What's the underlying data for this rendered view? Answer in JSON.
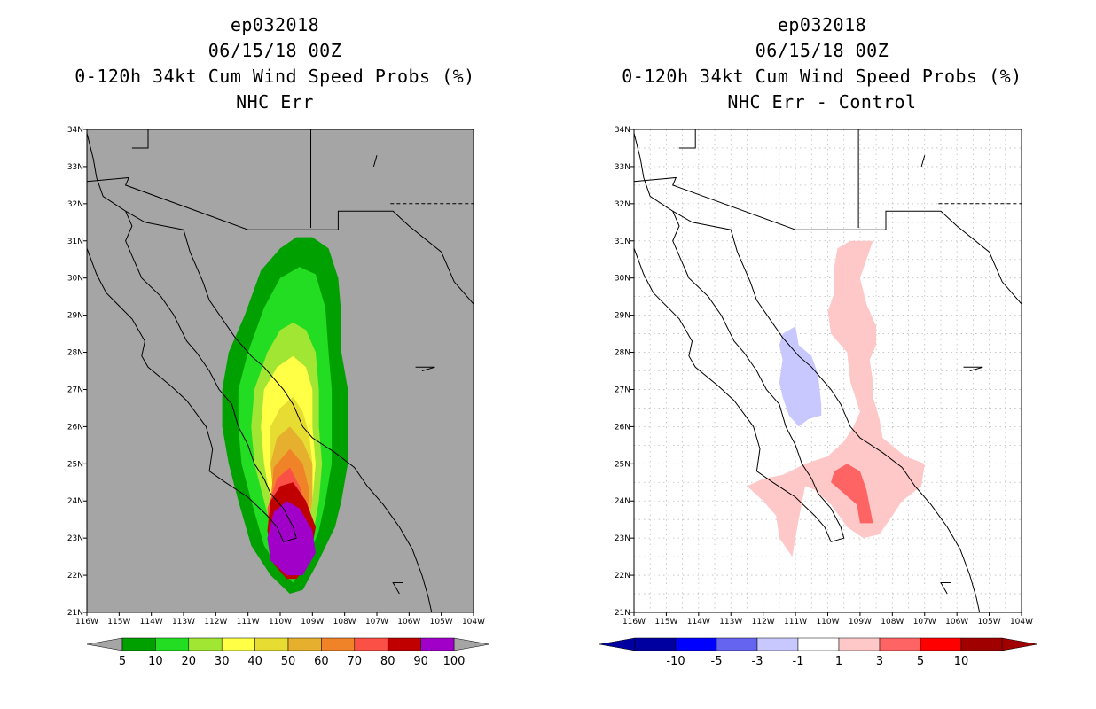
{
  "left_panel": {
    "title_line1": "ep032018",
    "title_line2": "06/15/18 00Z",
    "title_line3": "0-120h 34kt Cum Wind Speed Probs (%)",
    "title_line4": "NHC Err"
  },
  "right_panel": {
    "title_line1": "ep032018",
    "title_line2": "06/15/18 00Z",
    "title_line3": "0-120h 34kt Cum Wind Speed Probs (%)",
    "title_line4": "NHC Err - Control"
  },
  "chart_data": [
    {
      "type": "heatmap",
      "panel": "left",
      "title": "0-120h 34kt Cum Wind Speed Probs (%)",
      "subtitle": "NHC Err",
      "x_ticks": [
        "116W",
        "115W",
        "114W",
        "113W",
        "112W",
        "111W",
        "110W",
        "109W",
        "108W",
        "107W",
        "106W",
        "105W",
        "104W"
      ],
      "y_ticks": [
        "21N",
        "22N",
        "23N",
        "24N",
        "25N",
        "26N",
        "27N",
        "28N",
        "29N",
        "30N",
        "31N",
        "32N",
        "33N",
        "34N"
      ],
      "xlim": [
        -116,
        -104
      ],
      "ylim": [
        21,
        34
      ],
      "grid": false,
      "background": "#a5a5a5",
      "colorbar": {
        "labels": [
          "5",
          "10",
          "20",
          "30",
          "40",
          "50",
          "60",
          "70",
          "80",
          "90",
          "100"
        ],
        "colors": [
          "#00a000",
          "#22dd22",
          "#a0e632",
          "#ffff45",
          "#e6dc32",
          "#e6af2d",
          "#f08228",
          "#fa5046",
          "#c00000",
          "#a000c8"
        ],
        "arrow_color": "#a5a5a5"
      },
      "contours": [
        {
          "level": 5,
          "color": "#00a000",
          "points": [
            [
              -109.5,
              31.1
            ],
            [
              -109,
              31.1
            ],
            [
              -108.5,
              30.8
            ],
            [
              -108.2,
              30
            ],
            [
              -108.1,
              29
            ],
            [
              -108.1,
              28
            ],
            [
              -107.9,
              27
            ],
            [
              -107.9,
              26
            ],
            [
              -107.9,
              25
            ],
            [
              -108.1,
              24
            ],
            [
              -108.3,
              23.3
            ],
            [
              -108.8,
              22.4
            ],
            [
              -109.3,
              21.6
            ],
            [
              -109.7,
              21.5
            ],
            [
              -110.3,
              22
            ],
            [
              -110.9,
              22.8
            ],
            [
              -111.3,
              24
            ],
            [
              -111.6,
              25
            ],
            [
              -111.8,
              26
            ],
            [
              -111.8,
              27
            ],
            [
              -111.6,
              28
            ],
            [
              -111.1,
              29
            ],
            [
              -110.6,
              30.2
            ],
            [
              -110,
              30.8
            ]
          ]
        },
        {
          "level": 10,
          "color": "#22dd22",
          "points": [
            [
              -109.4,
              30.3
            ],
            [
              -108.9,
              30.1
            ],
            [
              -108.6,
              29.2
            ],
            [
              -108.5,
              28
            ],
            [
              -108.4,
              27
            ],
            [
              -108.4,
              26
            ],
            [
              -108.4,
              25
            ],
            [
              -108.6,
              24
            ],
            [
              -108.8,
              23.2
            ],
            [
              -109.2,
              22.3
            ],
            [
              -109.6,
              21.8
            ],
            [
              -110,
              22.1
            ],
            [
              -110.5,
              22.8
            ],
            [
              -110.9,
              24
            ],
            [
              -111.2,
              25
            ],
            [
              -111.3,
              26
            ],
            [
              -111.3,
              27
            ],
            [
              -111,
              28
            ],
            [
              -110.5,
              29.2
            ],
            [
              -110,
              30
            ]
          ]
        },
        {
          "level": 20,
          "color": "#a0e632",
          "points": [
            [
              -109.6,
              28.8
            ],
            [
              -109.2,
              28.6
            ],
            [
              -108.9,
              28
            ],
            [
              -108.8,
              27
            ],
            [
              -108.8,
              26
            ],
            [
              -108.7,
              25
            ],
            [
              -108.8,
              24
            ],
            [
              -109,
              23
            ],
            [
              -109.3,
              22.3
            ],
            [
              -109.6,
              22
            ],
            [
              -109.9,
              22.3
            ],
            [
              -110.2,
              23
            ],
            [
              -110.5,
              24
            ],
            [
              -110.8,
              25
            ],
            [
              -110.9,
              26
            ],
            [
              -110.8,
              27
            ],
            [
              -110.4,
              28
            ],
            [
              -110,
              28.6
            ]
          ]
        },
        {
          "level": 30,
          "color": "#ffff45",
          "points": [
            [
              -109.6,
              27.9
            ],
            [
              -109.2,
              27.6
            ],
            [
              -109,
              27
            ],
            [
              -109,
              26
            ],
            [
              -108.9,
              25
            ],
            [
              -109,
              24
            ],
            [
              -109.2,
              23
            ],
            [
              -109.5,
              22.3
            ],
            [
              -109.8,
              22.3
            ],
            [
              -110,
              23
            ],
            [
              -110.3,
              24
            ],
            [
              -110.5,
              25
            ],
            [
              -110.6,
              26
            ],
            [
              -110.5,
              27
            ],
            [
              -110.1,
              27.6
            ]
          ]
        },
        {
          "level": 40,
          "color": "#e6dc32",
          "points": [
            [
              -109.6,
              26.8
            ],
            [
              -109.3,
              26.4
            ],
            [
              -109.1,
              25.8
            ],
            [
              -109,
              25
            ],
            [
              -109,
              24
            ],
            [
              -109.2,
              23
            ],
            [
              -109.5,
              22.3
            ],
            [
              -109.8,
              22.3
            ],
            [
              -110,
              23
            ],
            [
              -110.2,
              24
            ],
            [
              -110.3,
              25
            ],
            [
              -110.3,
              26
            ],
            [
              -110,
              26.5
            ]
          ]
        },
        {
          "level": 50,
          "color": "#e6af2d",
          "points": [
            [
              -109.7,
              26
            ],
            [
              -109.3,
              25.6
            ],
            [
              -109,
              25
            ],
            [
              -109,
              24
            ],
            [
              -109.2,
              23
            ],
            [
              -109.5,
              22.3
            ],
            [
              -109.8,
              22.3
            ],
            [
              -110,
              23
            ],
            [
              -110.2,
              24
            ],
            [
              -110.3,
              25
            ],
            [
              -110.1,
              25.7
            ]
          ]
        },
        {
          "level": 60,
          "color": "#f08228",
          "points": [
            [
              -109.7,
              25.4
            ],
            [
              -109.3,
              25
            ],
            [
              -109.1,
              24.3
            ],
            [
              -109.2,
              23
            ],
            [
              -109.5,
              22.3
            ],
            [
              -109.8,
              22.3
            ],
            [
              -110.1,
              23
            ],
            [
              -110.3,
              24
            ],
            [
              -110.2,
              24.9
            ]
          ]
        },
        {
          "level": 70,
          "color": "#fa5046",
          "points": [
            [
              -109.7,
              24.9
            ],
            [
              -109.4,
              24.4
            ],
            [
              -109.1,
              23.6
            ],
            [
              -109.3,
              22.6
            ],
            [
              -109.6,
              22
            ],
            [
              -109.9,
              22.1
            ],
            [
              -110.3,
              22.8
            ],
            [
              -110.4,
              23.8
            ],
            [
              -110.1,
              24.6
            ]
          ]
        },
        {
          "level": 80,
          "color": "#c00000",
          "points": [
            [
              -109.6,
              24.5
            ],
            [
              -109.2,
              24
            ],
            [
              -108.9,
              23.3
            ],
            [
              -109.1,
              22.3
            ],
            [
              -109.5,
              21.9
            ],
            [
              -109.8,
              21.9
            ],
            [
              -110.2,
              22.3
            ],
            [
              -110.4,
              23.2
            ],
            [
              -110.3,
              24
            ],
            [
              -110,
              24.4
            ]
          ]
        },
        {
          "level": 90,
          "color": "#a000c8",
          "points": [
            [
              -109.8,
              24
            ],
            [
              -109.4,
              23.8
            ],
            [
              -109,
              23.2
            ],
            [
              -108.9,
              22.6
            ],
            [
              -109.3,
              22
            ],
            [
              -109.8,
              22
            ],
            [
              -110.3,
              22.4
            ],
            [
              -110.4,
              23
            ],
            [
              -110.2,
              23.7
            ]
          ]
        }
      ]
    },
    {
      "type": "heatmap",
      "panel": "right",
      "title": "0-120h 34kt Cum Wind Speed Probs (%)",
      "subtitle": "NHC Err - Control",
      "x_ticks": [
        "116W",
        "115W",
        "114W",
        "113W",
        "112W",
        "111W",
        "110W",
        "109W",
        "108W",
        "107W",
        "106W",
        "105W",
        "104W"
      ],
      "y_ticks": [
        "21N",
        "22N",
        "23N",
        "24N",
        "25N",
        "26N",
        "27N",
        "28N",
        "29N",
        "30N",
        "31N",
        "32N",
        "33N",
        "34N"
      ],
      "xlim": [
        -116,
        -104
      ],
      "ylim": [
        21,
        34
      ],
      "grid": true,
      "background": "#ffffff",
      "colorbar": {
        "labels": [
          "-10",
          "-5",
          "-3",
          "-1",
          "1",
          "3",
          "5",
          "10"
        ],
        "colors": [
          "#0000a0",
          "#0000ff",
          "#6464f0",
          "#c8c8ff",
          "#ffffff",
          "#ffc8c8",
          "#ff6464",
          "#ff0000",
          "#a00000"
        ],
        "arrow_color_low": "#0000a0",
        "arrow_color_high": "#a00000"
      },
      "contours": [
        {
          "level": 1,
          "color": "#ffc8c8",
          "points": [
            [
              -109.3,
              31
            ],
            [
              -108.6,
              31
            ],
            [
              -108.8,
              30.5
            ],
            [
              -109,
              30
            ],
            [
              -108.8,
              29.3
            ],
            [
              -108.5,
              28.7
            ],
            [
              -108.5,
              28.2
            ],
            [
              -108.7,
              27.8
            ],
            [
              -108.6,
              27.2
            ],
            [
              -108.6,
              26.8
            ],
            [
              -108.4,
              26.2
            ],
            [
              -108.3,
              25.7
            ],
            [
              -107.6,
              25.2
            ],
            [
              -107,
              25
            ],
            [
              -107.1,
              24.4
            ],
            [
              -107.7,
              24
            ],
            [
              -108,
              23.6
            ],
            [
              -108.4,
              23.1
            ],
            [
              -108.9,
              23
            ],
            [
              -109.4,
              23.3
            ],
            [
              -109.9,
              23.9
            ],
            [
              -110.4,
              24.3
            ],
            [
              -110.7,
              24.4
            ],
            [
              -110.9,
              23.5
            ],
            [
              -111.1,
              22.5
            ],
            [
              -111.5,
              23
            ],
            [
              -111.6,
              23.6
            ],
            [
              -112,
              24
            ],
            [
              -112.5,
              24.4
            ],
            [
              -112,
              24.6
            ],
            [
              -111.4,
              24.7
            ],
            [
              -110.7,
              25
            ],
            [
              -110,
              25.2
            ],
            [
              -109.5,
              25.6
            ],
            [
              -109.2,
              26
            ],
            [
              -109,
              26.4
            ],
            [
              -109.3,
              27.2
            ],
            [
              -109.4,
              28
            ],
            [
              -109.9,
              28.5
            ],
            [
              -110,
              29.1
            ],
            [
              -109.8,
              29.6
            ],
            [
              -109.8,
              30.3
            ],
            [
              -109.7,
              30.8
            ]
          ]
        },
        {
          "level": -1,
          "color": "#c8c8ff",
          "points": [
            [
              -111.4,
              28.5
            ],
            [
              -111,
              28.7
            ],
            [
              -110.9,
              28.2
            ],
            [
              -110.5,
              27.9
            ],
            [
              -110.3,
              27.4
            ],
            [
              -110.2,
              26.6
            ],
            [
              -110.2,
              26.3
            ],
            [
              -110.6,
              26.2
            ],
            [
              -110.9,
              26
            ],
            [
              -111.2,
              26.3
            ],
            [
              -111.4,
              26.8
            ],
            [
              -111.5,
              27.2
            ],
            [
              -111.4,
              27.8
            ],
            [
              -111.5,
              28.2
            ]
          ]
        },
        {
          "level": 3,
          "color": "#ff6464",
          "points": [
            [
              -109.4,
              25
            ],
            [
              -109,
              24.8
            ],
            [
              -108.8,
              24.3
            ],
            [
              -108.6,
              23.4
            ],
            [
              -109,
              23.4
            ],
            [
              -109.1,
              23.9
            ],
            [
              -109.5,
              24.2
            ],
            [
              -109.9,
              24.5
            ],
            [
              -109.8,
              24.8
            ]
          ]
        }
      ]
    }
  ]
}
